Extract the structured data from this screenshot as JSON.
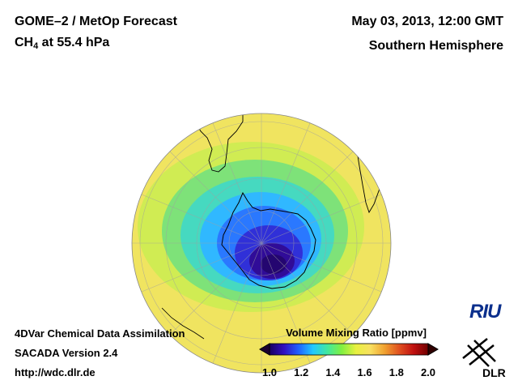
{
  "header": {
    "title_line1": "GOME–2 / MetOp Forecast",
    "species": "CH",
    "species_sub": "4",
    "level": " at 55.4 hPa",
    "date": "May 03, 2013, 12:00 GMT",
    "region": "Southern Hemisphere"
  },
  "footer": {
    "line1": "4DVar Chemical Data Assimilation",
    "line2": "SACADA Version 2.4",
    "line3": "http://wdc.dlr.de"
  },
  "colorbar": {
    "title": "Volume Mixing Ratio [ppmv]",
    "ticks": [
      "1.0",
      "1.2",
      "1.4",
      "1.6",
      "1.8",
      "2.0"
    ],
    "colors": [
      "#1a0060",
      "#3010c0",
      "#2060ff",
      "#20c8ff",
      "#40e8a0",
      "#80f040",
      "#e8f040",
      "#f8e060",
      "#f0a030",
      "#e05020",
      "#c01010",
      "#700000"
    ]
  },
  "logos": {
    "riu": "RIU",
    "dlr": "DLR"
  }
}
